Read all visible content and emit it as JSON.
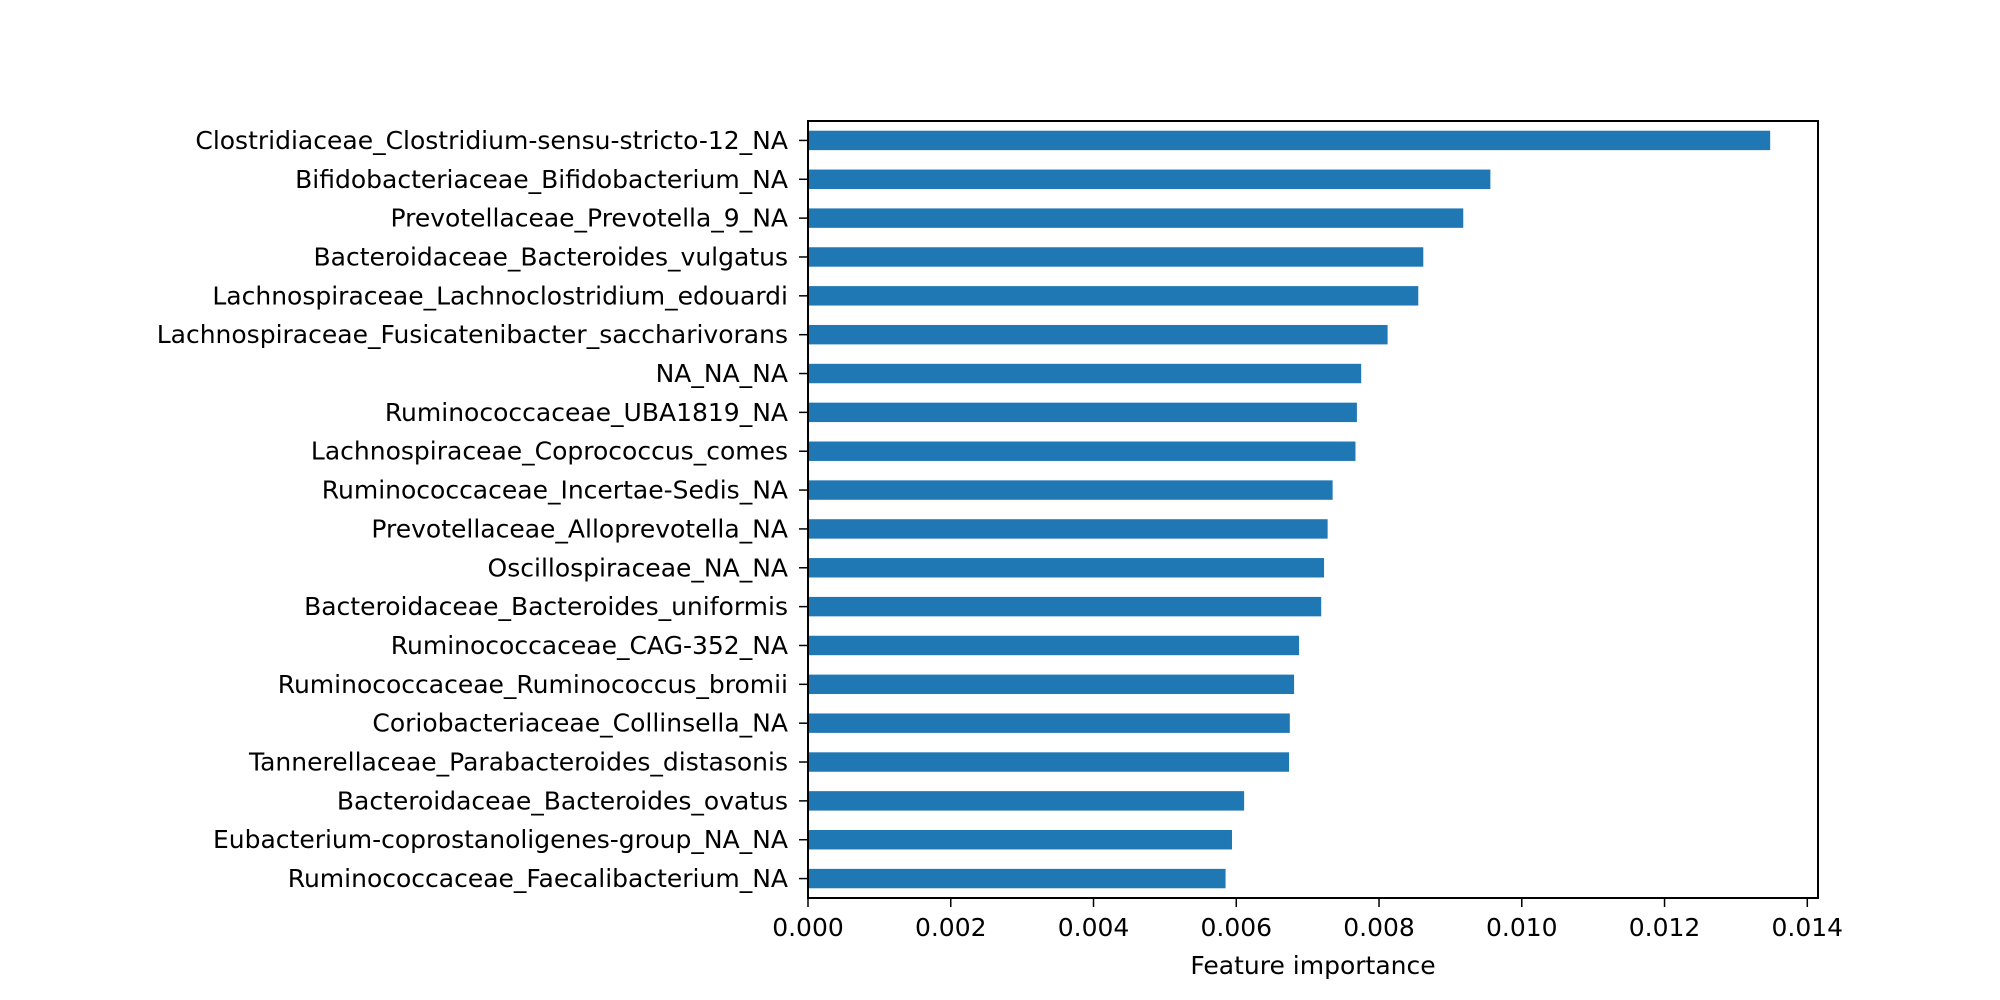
{
  "chart_data": {
    "type": "bar",
    "orientation": "horizontal",
    "title": "",
    "xlabel": "Feature importance",
    "ylabel": "",
    "xlim": [
      0,
      0.01415
    ],
    "x_ticks": [
      "0.000",
      "0.002",
      "0.004",
      "0.006",
      "0.008",
      "0.010",
      "0.012",
      "0.014"
    ],
    "grid": false,
    "legend": "none",
    "bar_color": "#1f77b4",
    "categories": [
      "Clostridiaceae_Clostridium-sensu-stricto-12_NA",
      "Bifidobacteriaceae_Bifidobacterium_NA",
      "Prevotellaceae_Prevotella_9_NA",
      "Bacteroidaceae_Bacteroides_vulgatus",
      "Lachnospiraceae_Lachnoclostridium_edouardi",
      "Lachnospiraceae_Fusicatenibacter_saccharivorans",
      "NA_NA_NA",
      "Ruminococcaceae_UBA1819_NA",
      "Lachnospiraceae_Coprococcus_comes",
      "Ruminococcaceae_Incertae-Sedis_NA",
      "Prevotellaceae_Alloprevotella_NA",
      "Oscillospiraceae_NA_NA",
      "Bacteroidaceae_Bacteroides_uniformis",
      "Ruminococcaceae_CAG-352_NA",
      "Ruminococcaceae_Ruminococcus_bromii",
      "Coriobacteriaceae_Collinsella_NA",
      "Tannerellaceae_Parabacteroides_distasonis",
      "Bacteroidaceae_Bacteroides_ovatus",
      "Eubacterium-coprostanoligenes-group_NA_NA",
      "Ruminococcaceae_Faecalibacterium_NA"
    ],
    "values": [
      0.01348,
      0.00956,
      0.00918,
      0.00862,
      0.00855,
      0.00812,
      0.00775,
      0.00769,
      0.00767,
      0.00735,
      0.00728,
      0.00723,
      0.00719,
      0.00688,
      0.00681,
      0.00675,
      0.00674,
      0.00611,
      0.00594,
      0.00585
    ]
  }
}
